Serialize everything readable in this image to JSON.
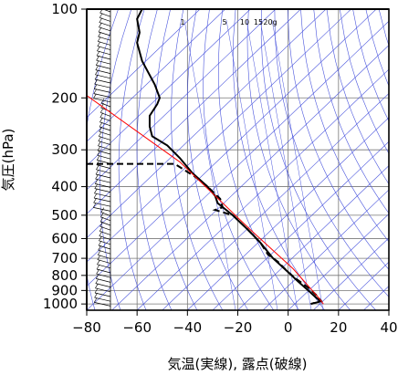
{
  "chart_data": {
    "type": "line",
    "title": "",
    "xlabel": "気温(実線), 露点(破線)",
    "ylabel": "気圧(hPa)",
    "xlim": [
      -80,
      40
    ],
    "ylim": [
      1050,
      100
    ],
    "y_scale": "log",
    "x_ticks": [
      -80,
      -60,
      -40,
      -20,
      0,
      20,
      40
    ],
    "y_ticks": [
      100,
      200,
      300,
      400,
      500,
      600,
      700,
      800,
      900,
      1000
    ],
    "mixing_ratio_labels": [
      "1",
      "5",
      "10",
      "15",
      "20g"
    ],
    "mixing_ratio_values": [
      1,
      5,
      10,
      15,
      20
    ],
    "series": [
      {
        "kind": "temperature",
        "style": "solid",
        "color": "#000000",
        "points": [
          [
            -58,
            100
          ],
          [
            -60,
            108
          ],
          [
            -59,
            120
          ],
          [
            -60,
            130
          ],
          [
            -58,
            150
          ],
          [
            -53,
            180
          ],
          [
            -51,
            200
          ],
          [
            -52,
            210
          ],
          [
            -55,
            230
          ],
          [
            -55,
            250
          ],
          [
            -54,
            270
          ],
          [
            -48,
            290
          ],
          [
            -43,
            320
          ],
          [
            -38,
            360
          ],
          [
            -32,
            400
          ],
          [
            -29,
            430
          ],
          [
            -28,
            455
          ],
          [
            -22,
            500
          ],
          [
            -16,
            560
          ],
          [
            -11,
            620
          ],
          [
            -6,
            700
          ],
          [
            0,
            780
          ],
          [
            4,
            840
          ],
          [
            8,
            900
          ],
          [
            11,
            950
          ],
          [
            13,
            980
          ],
          [
            9,
            1000
          ]
        ]
      },
      {
        "kind": "dewpoint",
        "style": "dashed",
        "color": "#000000",
        "points": [
          [
            -80,
            335
          ],
          [
            -62,
            335
          ],
          [
            -45,
            335
          ],
          [
            -37,
            370
          ],
          [
            -32,
            400
          ],
          [
            -27,
            440
          ],
          [
            -26,
            470
          ],
          [
            -29,
            480
          ],
          [
            -22,
            500
          ],
          [
            -16,
            560
          ],
          [
            -11,
            620
          ],
          [
            -8,
            680
          ],
          [
            -4,
            720
          ],
          [
            0,
            780
          ],
          [
            3,
            820
          ],
          [
            8,
            880
          ],
          [
            11,
            930
          ],
          [
            13,
            975
          ],
          [
            9,
            1000
          ]
        ]
      },
      {
        "kind": "reference",
        "style": "solid",
        "color": "#ff0000",
        "points": [
          [
            -85,
            183
          ],
          [
            -43,
            330
          ],
          [
            -15,
            560
          ],
          [
            2,
            760
          ],
          [
            12,
            950
          ],
          [
            14,
            1000
          ]
        ]
      }
    ],
    "wind_barbs": "column of wind barbs along the left edge from 1000 hPa to 100 hPa"
  }
}
